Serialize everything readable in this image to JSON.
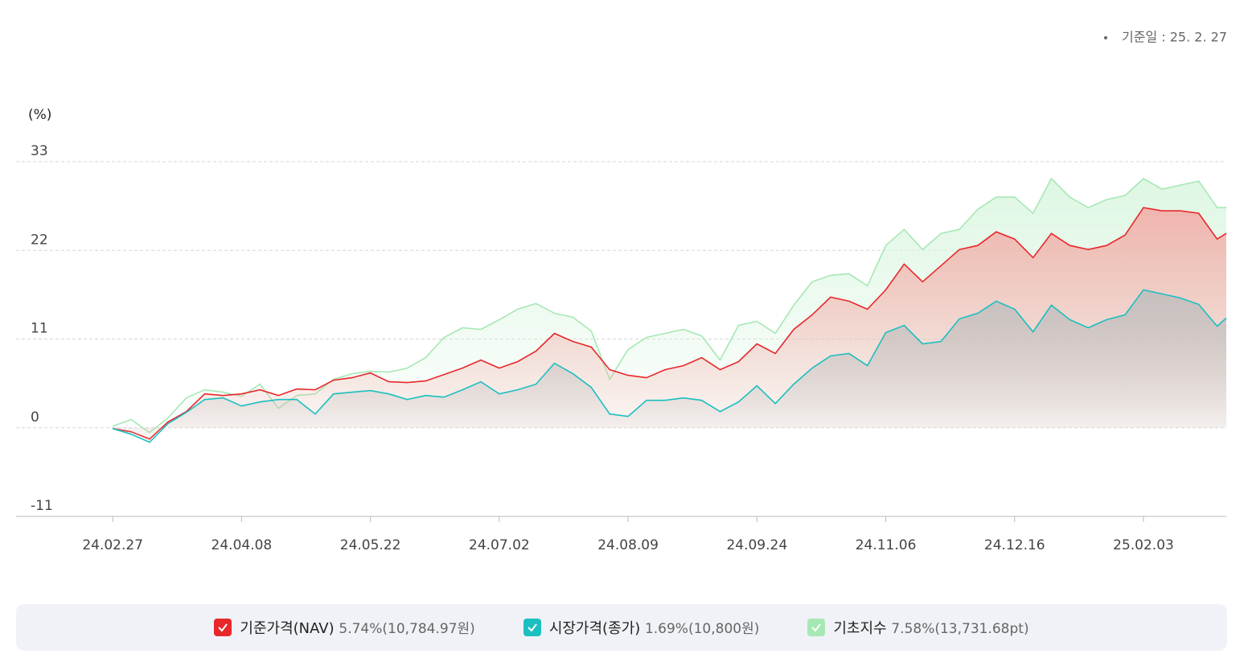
{
  "chart_data": {
    "type": "line",
    "date_note": "기준일 : 25. 2. 27",
    "ylabel": "(%)",
    "x": [
      0,
      4,
      8,
      12,
      16,
      20,
      24,
      28,
      32,
      36,
      40,
      44,
      48,
      52,
      56,
      60,
      64,
      68,
      72,
      76,
      80,
      84,
      88,
      92,
      96,
      100,
      104,
      108,
      112,
      116,
      120,
      124,
      128,
      132,
      136,
      140,
      144,
      148,
      152,
      156,
      160,
      164,
      168,
      172,
      176,
      180,
      184,
      188,
      192,
      196,
      200,
      204,
      208,
      212,
      216,
      220,
      224,
      228,
      232,
      236,
      240,
      242
    ],
    "xlim": [
      -21,
      242
    ],
    "xticks": [
      {
        "value": 0,
        "label": "24.02.27"
      },
      {
        "value": 28,
        "label": "24.04.08"
      },
      {
        "value": 56,
        "label": "24.05.22"
      },
      {
        "value": 84,
        "label": "24.07.02"
      },
      {
        "value": 112,
        "label": "24.08.09"
      },
      {
        "value": 140,
        "label": "24.09.24"
      },
      {
        "value": 168,
        "label": "24.11.06"
      },
      {
        "value": 196,
        "label": "24.12.16"
      },
      {
        "value": 224,
        "label": "25.02.03"
      }
    ],
    "ylim": [
      -11,
      33
    ],
    "yticks": [
      -11,
      0,
      11,
      22,
      33
    ],
    "grid": true,
    "series": [
      {
        "name": "기초지수",
        "summary": "7.58%(13,731.68pt)",
        "color": "#a6e8b4",
        "area_color": "#d9f5df",
        "values": [
          0.2,
          1.0,
          -0.6,
          1.2,
          3.7,
          4.7,
          4.4,
          3.9,
          5.4,
          2.4,
          4.0,
          4.2,
          6.0,
          6.7,
          7.0,
          6.9,
          7.4,
          8.7,
          11.2,
          12.4,
          12.2,
          13.4,
          14.7,
          15.4,
          14.2,
          13.7,
          12.0,
          6.0,
          9.7,
          11.2,
          11.7,
          12.2,
          11.4,
          8.4,
          12.7,
          13.2,
          11.7,
          15.2,
          18.1,
          18.9,
          19.1,
          17.6,
          22.6,
          24.6,
          22.1,
          24.1,
          24.6,
          27.1,
          28.6,
          28.6,
          26.6,
          30.9,
          28.6,
          27.3,
          28.3,
          28.8,
          30.9,
          29.6,
          30.1,
          30.6,
          27.3,
          27.3
        ]
      },
      {
        "name": "기준가격(NAV)",
        "summary": "5.74%(10,784.97원)",
        "color": "#e8272b",
        "area_color": "#f2a9a4",
        "values": [
          -0.1,
          -0.5,
          -1.4,
          0.7,
          2.0,
          4.2,
          4.0,
          4.2,
          4.7,
          4.0,
          4.8,
          4.7,
          5.9,
          6.2,
          6.8,
          5.7,
          5.6,
          5.8,
          6.6,
          7.4,
          8.4,
          7.4,
          8.2,
          9.5,
          11.7,
          10.7,
          10.0,
          7.2,
          6.5,
          6.2,
          7.2,
          7.7,
          8.7,
          7.2,
          8.2,
          10.4,
          9.2,
          12.2,
          14.0,
          16.2,
          15.7,
          14.7,
          17.1,
          20.3,
          18.1,
          20.1,
          22.1,
          22.6,
          24.3,
          23.4,
          21.1,
          24.1,
          22.6,
          22.1,
          22.6,
          23.9,
          27.3,
          26.9,
          26.9,
          26.6,
          23.4,
          24.1
        ]
      },
      {
        "name": "시장가격(종가)",
        "summary": "1.69%(10,800원)",
        "color": "#1bbfbf",
        "area_color": "#bdbdbd",
        "values": [
          -0.1,
          -0.8,
          -1.8,
          0.5,
          1.9,
          3.5,
          3.7,
          2.7,
          3.2,
          3.5,
          3.5,
          1.7,
          4.2,
          4.4,
          4.6,
          4.2,
          3.5,
          4.0,
          3.8,
          4.7,
          5.7,
          4.2,
          4.7,
          5.4,
          8.0,
          6.7,
          5.0,
          1.7,
          1.4,
          3.4,
          3.4,
          3.7,
          3.4,
          2.0,
          3.2,
          5.2,
          3.0,
          5.4,
          7.4,
          8.9,
          9.2,
          7.7,
          11.8,
          12.7,
          10.4,
          10.7,
          13.5,
          14.2,
          15.7,
          14.7,
          11.9,
          15.2,
          13.4,
          12.4,
          13.4,
          14.0,
          17.1,
          16.6,
          16.1,
          15.3,
          12.6,
          13.6
        ]
      }
    ],
    "legend_order": [
      1,
      2,
      0
    ]
  }
}
